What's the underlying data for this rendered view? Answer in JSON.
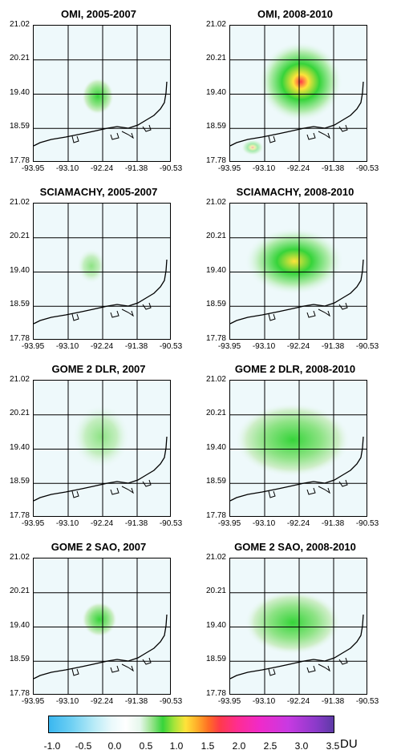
{
  "panels": [
    {
      "title": "OMI, 2005-2007",
      "yticks": [
        "21.02",
        "20.21",
        "19.40",
        "18.59",
        "17.78"
      ],
      "xticks": [
        "-93.95",
        "-93.10",
        "-92.24",
        "-91.38",
        "-90.53"
      ],
      "peak": 0.55
    },
    {
      "title": "OMI, 2008-2010",
      "yticks": [
        "21.02",
        "20.21",
        "19.40",
        "18.59",
        "17.78"
      ],
      "xticks": [
        "-93.95",
        "-93.10",
        "-92.24",
        "-91.38",
        "-90.53"
      ],
      "peak": 1.1
    },
    {
      "title": "SCIAMACHY, 2005-2007",
      "yticks": [
        "21.02",
        "20.21",
        "19.40",
        "18.59",
        "17.78"
      ],
      "xticks": [
        "-93.95",
        "-93.10",
        "-92.24",
        "-91.38",
        "-90.53"
      ],
      "peak": 0.3
    },
    {
      "title": "SCIAMACHY, 2008-2010",
      "yticks": [
        "21.02",
        "20.21",
        "19.40",
        "18.59",
        "17.78"
      ],
      "xticks": [
        "-93.95",
        "-93.10",
        "-92.24",
        "-91.38",
        "-90.53"
      ],
      "peak": 0.85
    },
    {
      "title": "GOME 2 DLR, 2007",
      "yticks": [
        "21.02",
        "20.21",
        "19.40",
        "18.59",
        "17.78"
      ],
      "xticks": [
        "-93.95",
        "-93.10",
        "-92.24",
        "-91.38",
        "-90.53"
      ],
      "peak": 0.4
    },
    {
      "title": "GOME 2 DLR, 2008-2010",
      "yticks": [
        "21.02",
        "20.21",
        "19.40",
        "18.59",
        "17.78"
      ],
      "xticks": [
        "-93.95",
        "-93.10",
        "-92.24",
        "-91.38",
        "-90.53"
      ],
      "peak": 0.55
    },
    {
      "title": "GOME 2 SAO, 2007",
      "yticks": [
        "21.02",
        "20.21",
        "19.40",
        "18.59",
        "17.78"
      ],
      "xticks": [
        "-93.95",
        "-93.10",
        "-92.24",
        "-91.38",
        "-90.53"
      ],
      "peak": 0.45
    },
    {
      "title": "GOME 2 SAO, 2008-2010",
      "yticks": [
        "21.02",
        "20.21",
        "19.40",
        "18.59",
        "17.78"
      ],
      "xticks": [
        "-93.95",
        "-93.10",
        "-92.24",
        "-91.38",
        "-90.53"
      ],
      "peak": 0.55
    }
  ],
  "colorbar": {
    "ticks": [
      "-1.0",
      "-0.5",
      "0.0",
      "0.5",
      "1.0",
      "1.5",
      "2.0",
      "2.5",
      "3.0",
      "3.5"
    ],
    "unit": "DU",
    "range": [
      -1.0,
      3.5
    ],
    "colors": {
      "low": "#3ab7f0",
      "zero": "#ffffff",
      "green": "#36d43a",
      "yellow": "#ffe33a",
      "red": "#ff3a4a",
      "magenta": "#f02ac9",
      "high": "#5d3aa6"
    }
  }
}
